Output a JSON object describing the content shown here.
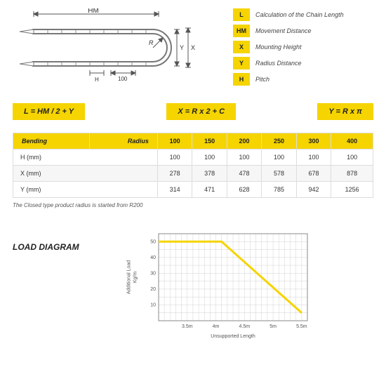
{
  "legend": [
    {
      "key": "L",
      "label": "Calculation of the Chain Length"
    },
    {
      "key": "HM",
      "label": "Movement Distance"
    },
    {
      "key": "X",
      "label": "Mounting Height"
    },
    {
      "key": "Y",
      "label": "Radius Distance"
    },
    {
      "key": "H",
      "label": "Pitch"
    }
  ],
  "diagram": {
    "hm_label": "HM",
    "r_label": "R",
    "y_label": "Y",
    "x_label": "X",
    "h_label": "H",
    "h_dim": "100",
    "stroke": "#555",
    "chain_stroke": "#777"
  },
  "formulas": [
    "L = HM / 2 + Y",
    "X = R x 2 + C",
    "Y = R x π"
  ],
  "table": {
    "header_bending": "Bending",
    "header_radius": "Radius",
    "columns": [
      "100",
      "150",
      "200",
      "250",
      "300",
      "400"
    ],
    "rows": [
      {
        "label": "H (mm)",
        "vals": [
          "100",
          "100",
          "100",
          "100",
          "100",
          "100"
        ],
        "shade": false
      },
      {
        "label": "X (mm)",
        "vals": [
          "278",
          "378",
          "478",
          "578",
          "678",
          "878"
        ],
        "shade": true
      },
      {
        "label": "Y (mm)",
        "vals": [
          "314",
          "471",
          "628",
          "785",
          "942",
          "1256"
        ],
        "shade": false
      }
    ],
    "note": "The Closed type product radius is started from R200"
  },
  "chart": {
    "title": "LOAD DIAGRAM",
    "ylabel": "Additional Load\nKg/m",
    "xlabel": "Unsupported Length",
    "xlim": [
      3.0,
      5.6
    ],
    "ylim": [
      0,
      55
    ],
    "xticks": [
      "3.5m",
      "4m",
      "4.5m",
      "5m",
      "5.5m"
    ],
    "xtick_vals": [
      3.5,
      4.0,
      4.5,
      5.0,
      5.5
    ],
    "yticks": [
      "10",
      "20",
      "30",
      "40",
      "50"
    ],
    "ytick_vals": [
      10,
      20,
      30,
      40,
      50
    ],
    "grid_step_x": 0.1,
    "grid_step_y": 5,
    "line_color": "#f5d400",
    "line_width": 3,
    "grid_color": "#c8c8c8",
    "axis_color": "#888",
    "fontsize_tick": 7,
    "fontsize_label": 7,
    "points": [
      [
        3.0,
        50
      ],
      [
        4.1,
        50
      ],
      [
        5.5,
        5
      ]
    ]
  }
}
